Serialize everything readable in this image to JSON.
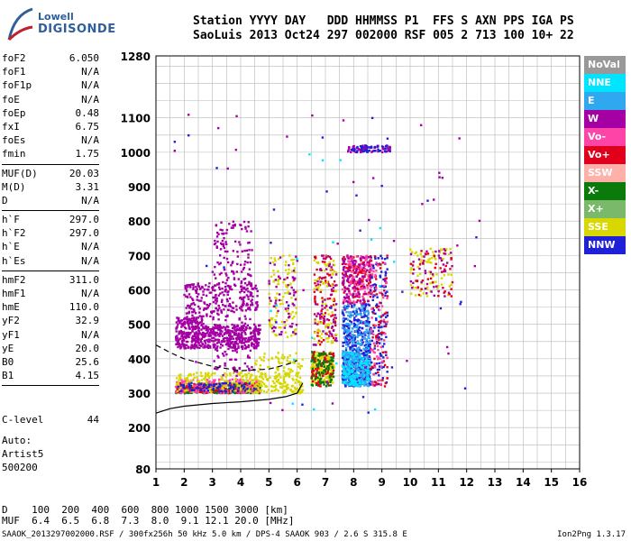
{
  "logo": {
    "line1": "Lowell",
    "line2": "DIGISONDE"
  },
  "header": {
    "row1": "Station YYYY DAY   DDD HHMMSS P1  FFS S AXN PPS IGA PS",
    "row2": "SaoLuis 2013 Oct24 297 002000 RSF 005 2 713 100 10+ 22"
  },
  "params_group1": [
    {
      "k": "foF2",
      "v": "6.050"
    },
    {
      "k": "foF1",
      "v": "N/A"
    },
    {
      "k": "foF1p",
      "v": "N/A"
    },
    {
      "k": "foE",
      "v": "N/A"
    },
    {
      "k": "foEp",
      "v": "0.48"
    },
    {
      "k": "fxI",
      "v": "6.75"
    },
    {
      "k": "foEs",
      "v": "N/A"
    },
    {
      "k": "fmin",
      "v": "1.75"
    }
  ],
  "params_group2": [
    {
      "k": "MUF(D)",
      "v": "20.03"
    },
    {
      "k": "M(D)",
      "v": "3.31"
    },
    {
      "k": "D",
      "v": "N/A"
    }
  ],
  "params_group3": [
    {
      "k": "h`F",
      "v": "297.0"
    },
    {
      "k": "h`F2",
      "v": "297.0"
    },
    {
      "k": "h`E",
      "v": "N/A"
    },
    {
      "k": "h`Es",
      "v": "N/A"
    }
  ],
  "params_group4": [
    {
      "k": "hmF2",
      "v": "311.0"
    },
    {
      "k": "hmF1",
      "v": "N/A"
    },
    {
      "k": "hmE",
      "v": "110.0"
    },
    {
      "k": "yF2",
      "v": "32.9"
    },
    {
      "k": "yF1",
      "v": "N/A"
    },
    {
      "k": "yE",
      "v": "20.0"
    },
    {
      "k": "B0",
      "v": "25.6"
    },
    {
      "k": "B1",
      "v": "4.15"
    }
  ],
  "clevel": {
    "label": "C-level",
    "value": "44"
  },
  "auto": [
    "Auto:",
    "Artist5",
    "500200"
  ],
  "legend": [
    {
      "label": "NoVal",
      "color": "#999999"
    },
    {
      "label": "NNE",
      "color": "#00e5ff"
    },
    {
      "label": "E",
      "color": "#2fa8f0"
    },
    {
      "label": "W",
      "color": "#a400a4"
    },
    {
      "label": "Vo-",
      "color": "#ff44a8"
    },
    {
      "label": "Vo+",
      "color": "#e0001c"
    },
    {
      "label": "SSW",
      "color": "#ffb0a8"
    },
    {
      "label": "X-",
      "color": "#0a7a0a"
    },
    {
      "label": "X+",
      "color": "#7ab86a"
    },
    {
      "label": "SSE",
      "color": "#d8d800"
    },
    {
      "label": "NNW",
      "color": "#2020d8"
    }
  ],
  "muf_table": {
    "row1": "D    100  200  400  600  800 1000 1500 3000 [km]",
    "row2": "MUF  6.4  6.5  6.8  7.3  8.0  9.1 12.1 20.0 [MHz]"
  },
  "footer": "SAAOK_2013297002000.RSF / 300fx256h 50 kHz 5.0 km / DPS-4 SAAOK 903 / 2.6 S 315.8 E",
  "version": "Ion2Png 1.3.17",
  "chart_data": {
    "type": "scatter",
    "xlim": [
      1,
      16
    ],
    "ylim": [
      80,
      1280
    ],
    "xticks": [
      1,
      2,
      3,
      4,
      5,
      6,
      7,
      8,
      9,
      10,
      11,
      12,
      13,
      14,
      15,
      16
    ],
    "yticks": [
      80,
      200,
      300,
      400,
      500,
      600,
      700,
      800,
      900,
      1000,
      1100,
      1280
    ],
    "grid": true,
    "legend_position": "right",
    "clusters": [
      {
        "x": [
          1.7,
          2.7
        ],
        "y": [
          430,
          520
        ],
        "color": "#a400a4",
        "n": 260
      },
      {
        "x": [
          2.7,
          4.7
        ],
        "y": [
          430,
          500
        ],
        "color": "#a400a4",
        "n": 320
      },
      {
        "x": [
          1.7,
          4.7
        ],
        "y": [
          300,
          330
        ],
        "color": "#0a7a0a",
        "n": 260
      },
      {
        "x": [
          1.7,
          4.7
        ],
        "y": [
          300,
          330
        ],
        "color": "#e0001c",
        "n": 160
      },
      {
        "x": [
          1.7,
          4.7
        ],
        "y": [
          300,
          340
        ],
        "color": "#ff44a8",
        "n": 160
      },
      {
        "x": [
          1.7,
          6.2
        ],
        "y": [
          300,
          360
        ],
        "color": "#d8d800",
        "n": 260
      },
      {
        "x": [
          1.7,
          4.7
        ],
        "y": [
          305,
          330
        ],
        "color": "#2020d8",
        "n": 80
      },
      {
        "x": [
          2.0,
          3.7
        ],
        "y": [
          520,
          620
        ],
        "color": "#a400a4",
        "n": 150
      },
      {
        "x": [
          3.0,
          4.4
        ],
        "y": [
          350,
          800
        ],
        "color": "#a400a4",
        "n": 260
      },
      {
        "x": [
          4.0,
          4.6
        ],
        "y": [
          540,
          620
        ],
        "color": "#a400a4",
        "n": 60
      },
      {
        "x": [
          5.0,
          6.0
        ],
        "y": [
          460,
          700
        ],
        "color": "#d8d800",
        "n": 100
      },
      {
        "x": [
          5.0,
          6.0
        ],
        "y": [
          460,
          700
        ],
        "color": "#a400a4",
        "n": 60
      },
      {
        "x": [
          6.5,
          7.3
        ],
        "y": [
          330,
          420
        ],
        "color": "#d8d800",
        "n": 200
      },
      {
        "x": [
          6.5,
          7.3
        ],
        "y": [
          320,
          420
        ],
        "color": "#e0001c",
        "n": 80
      },
      {
        "x": [
          6.5,
          7.3
        ],
        "y": [
          320,
          420
        ],
        "color": "#0a7a0a",
        "n": 80
      },
      {
        "x": [
          6.6,
          7.4
        ],
        "y": [
          440,
          700
        ],
        "color": "#e0001c",
        "n": 90
      },
      {
        "x": [
          6.6,
          7.4
        ],
        "y": [
          440,
          700
        ],
        "color": "#d8d800",
        "n": 80
      },
      {
        "x": [
          6.6,
          7.4
        ],
        "y": [
          440,
          700
        ],
        "color": "#a400a4",
        "n": 60
      },
      {
        "x": [
          7.6,
          8.6
        ],
        "y": [
          320,
          420
        ],
        "color": "#2020d8",
        "n": 320
      },
      {
        "x": [
          7.6,
          8.6
        ],
        "y": [
          320,
          420
        ],
        "color": "#2fa8f0",
        "n": 200
      },
      {
        "x": [
          7.6,
          8.6
        ],
        "y": [
          320,
          420
        ],
        "color": "#00e5ff",
        "n": 100
      },
      {
        "x": [
          7.6,
          8.6
        ],
        "y": [
          420,
          560
        ],
        "color": "#2020d8",
        "n": 200
      },
      {
        "x": [
          7.6,
          8.6
        ],
        "y": [
          420,
          560
        ],
        "color": "#2fa8f0",
        "n": 120
      },
      {
        "x": [
          7.6,
          8.6
        ],
        "y": [
          560,
          700
        ],
        "color": "#e0001c",
        "n": 120
      },
      {
        "x": [
          7.6,
          8.6
        ],
        "y": [
          560,
          700
        ],
        "color": "#ff44a8",
        "n": 120
      },
      {
        "x": [
          7.6,
          8.6
        ],
        "y": [
          560,
          700
        ],
        "color": "#a400a4",
        "n": 100
      },
      {
        "x": [
          8.6,
          9.2
        ],
        "y": [
          320,
          700
        ],
        "color": "#2020d8",
        "n": 120
      },
      {
        "x": [
          8.6,
          9.2
        ],
        "y": [
          320,
          700
        ],
        "color": "#e0001c",
        "n": 70
      },
      {
        "x": [
          8.6,
          9.2
        ],
        "y": [
          320,
          700
        ],
        "color": "#ff44a8",
        "n": 60
      },
      {
        "x": [
          7.8,
          9.3
        ],
        "y": [
          1000,
          1020
        ],
        "color": "#a400a4",
        "n": 60
      },
      {
        "x": [
          7.8,
          9.3
        ],
        "y": [
          1000,
          1020
        ],
        "color": "#2020d8",
        "n": 40
      },
      {
        "x": [
          10.0,
          11.5
        ],
        "y": [
          580,
          720
        ],
        "color": "#d8d800",
        "n": 70
      },
      {
        "x": [
          10.0,
          11.5
        ],
        "y": [
          580,
          720
        ],
        "color": "#e0001c",
        "n": 40
      },
      {
        "x": [
          10.0,
          11.5
        ],
        "y": [
          580,
          720
        ],
        "color": "#a400a4",
        "n": 40
      },
      {
        "x": [
          4.5,
          6.2
        ],
        "y": [
          300,
          420
        ],
        "color": "#d8d800",
        "n": 100
      },
      {
        "x": [
          1.5,
          12.7
        ],
        "y": [
          250,
          1120
        ],
        "color": "#a400a4",
        "n": 50
      },
      {
        "x": [
          1.5,
          12.7
        ],
        "y": [
          200,
          1120
        ],
        "color": "#2020d8",
        "n": 30
      },
      {
        "x": [
          5.0,
          9.5
        ],
        "y": [
          180,
          1100
        ],
        "color": "#00e5ff",
        "n": 20
      }
    ],
    "trace_solid": [
      [
        1,
        242
      ],
      [
        1.5,
        255
      ],
      [
        2,
        262
      ],
      [
        3,
        270
      ],
      [
        4,
        275
      ],
      [
        5,
        282
      ],
      [
        5.6,
        290
      ],
      [
        6.0,
        300
      ],
      [
        6.2,
        330
      ]
    ],
    "trace_dashed": [
      [
        1,
        440
      ],
      [
        1.5,
        418
      ],
      [
        2,
        400
      ],
      [
        3,
        378
      ],
      [
        4,
        365
      ],
      [
        5,
        370
      ],
      [
        5.7,
        385
      ],
      [
        6.0,
        395
      ]
    ]
  }
}
